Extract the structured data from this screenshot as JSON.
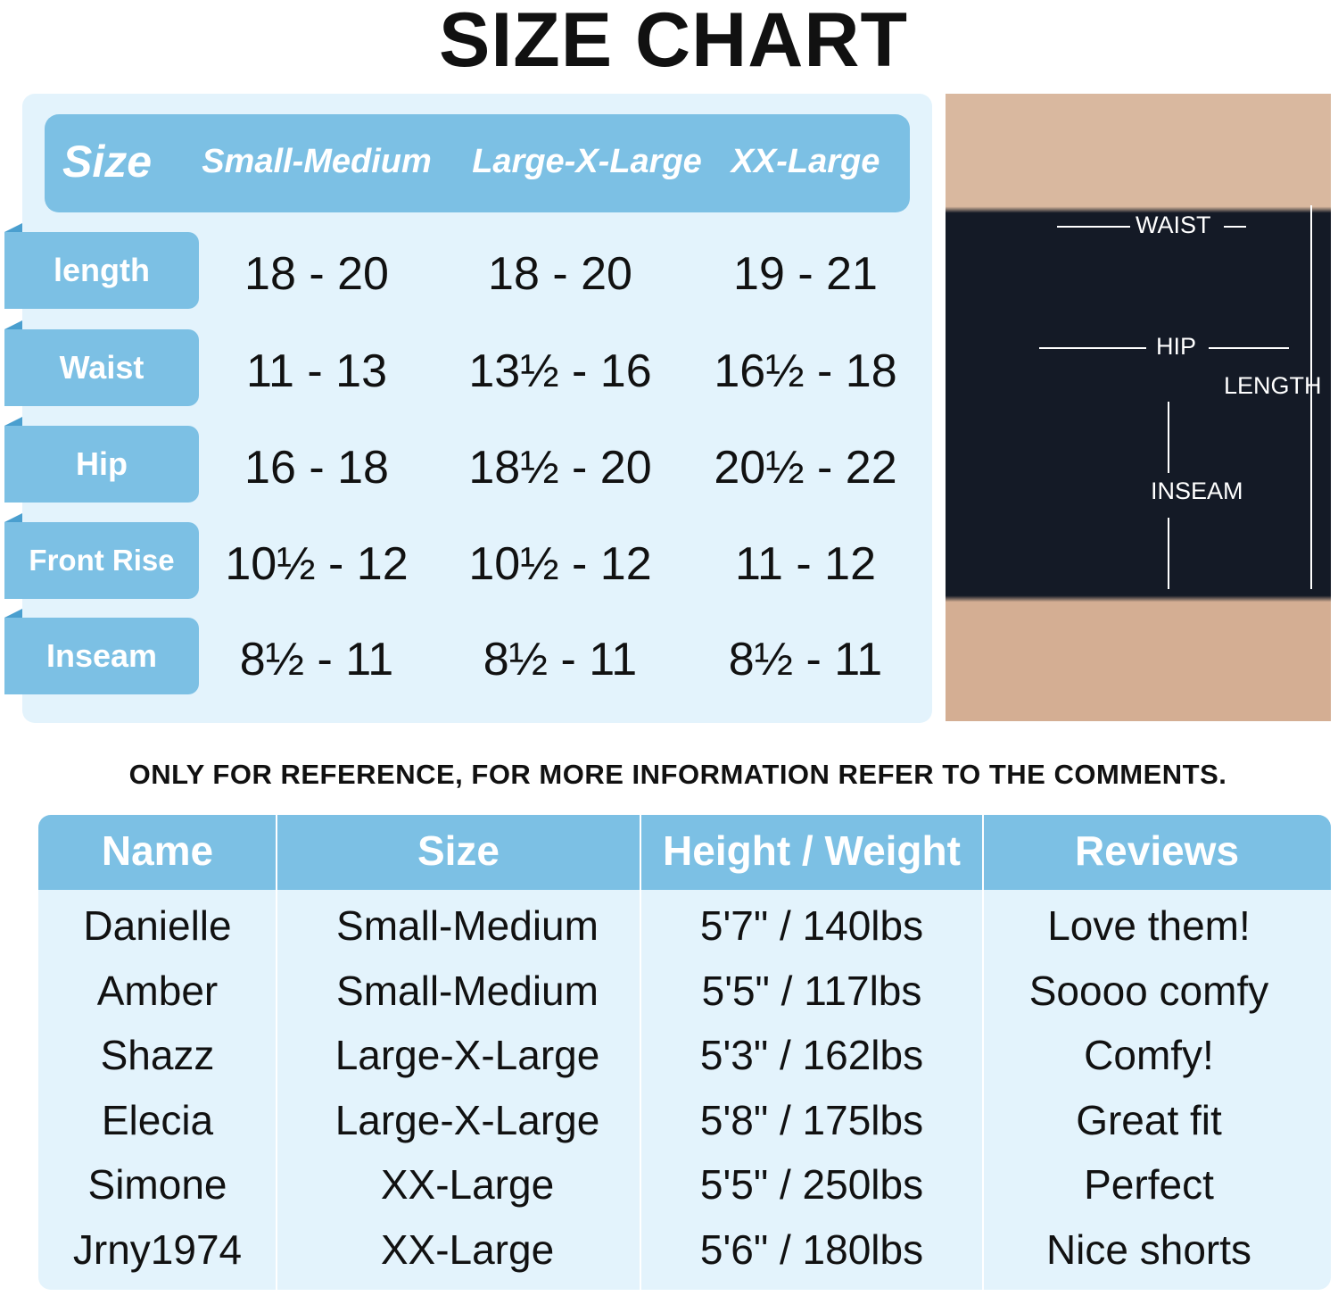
{
  "title": "SIZE CHART",
  "size_table": {
    "header": [
      "Size",
      "Small-Medium",
      "Large-X-Large",
      "XX-Large"
    ],
    "rows": [
      {
        "label": "length",
        "values": [
          "18 - 20",
          "18 - 20",
          "19 - 21"
        ]
      },
      {
        "label": "Waist",
        "values": [
          "11 - 13",
          "13½ - 16",
          "16½ - 18"
        ]
      },
      {
        "label": "Hip",
        "values": [
          "16 - 18",
          "18½ - 20",
          "20½ - 22"
        ]
      },
      {
        "label": "Front Rise",
        "values": [
          "10½ - 12",
          "10½ - 12",
          "11 - 12"
        ]
      },
      {
        "label": "Inseam",
        "values": [
          "8½ - 11",
          "8½ - 11",
          "8½ - 11"
        ]
      }
    ]
  },
  "photo": {
    "labels": {
      "waist": "WAIST",
      "hip": "HIP",
      "length": "LENGTH",
      "inseam": "INSEAM"
    }
  },
  "note": "ONLY FOR REFERENCE, FOR MORE INFORMATION REFER TO THE COMMENTS.",
  "reviews_table": {
    "header": [
      "Name",
      "Size",
      "Height / Weight",
      "Reviews"
    ],
    "rows": [
      [
        "Danielle",
        "Small-Medium",
        "5'7\" / 140lbs",
        "Love them!"
      ],
      [
        "Amber",
        "Small-Medium",
        "5'5\" / 117lbs",
        "Soooo comfy"
      ],
      [
        "Shazz",
        "Large-X-Large",
        "5'3\" / 162lbs",
        "Comfy!"
      ],
      [
        "Elecia",
        "Large-X-Large",
        "5'8\" / 175lbs",
        "Great fit"
      ],
      [
        "Simone",
        "XX-Large",
        "5'5\" / 250lbs",
        "Perfect"
      ],
      [
        "Jrny1974",
        "XX-Large",
        "5'6\" / 180lbs",
        "Nice shorts"
      ]
    ]
  },
  "colors": {
    "accent": "#7cc0e4",
    "panel": "#e3f3fc"
  }
}
